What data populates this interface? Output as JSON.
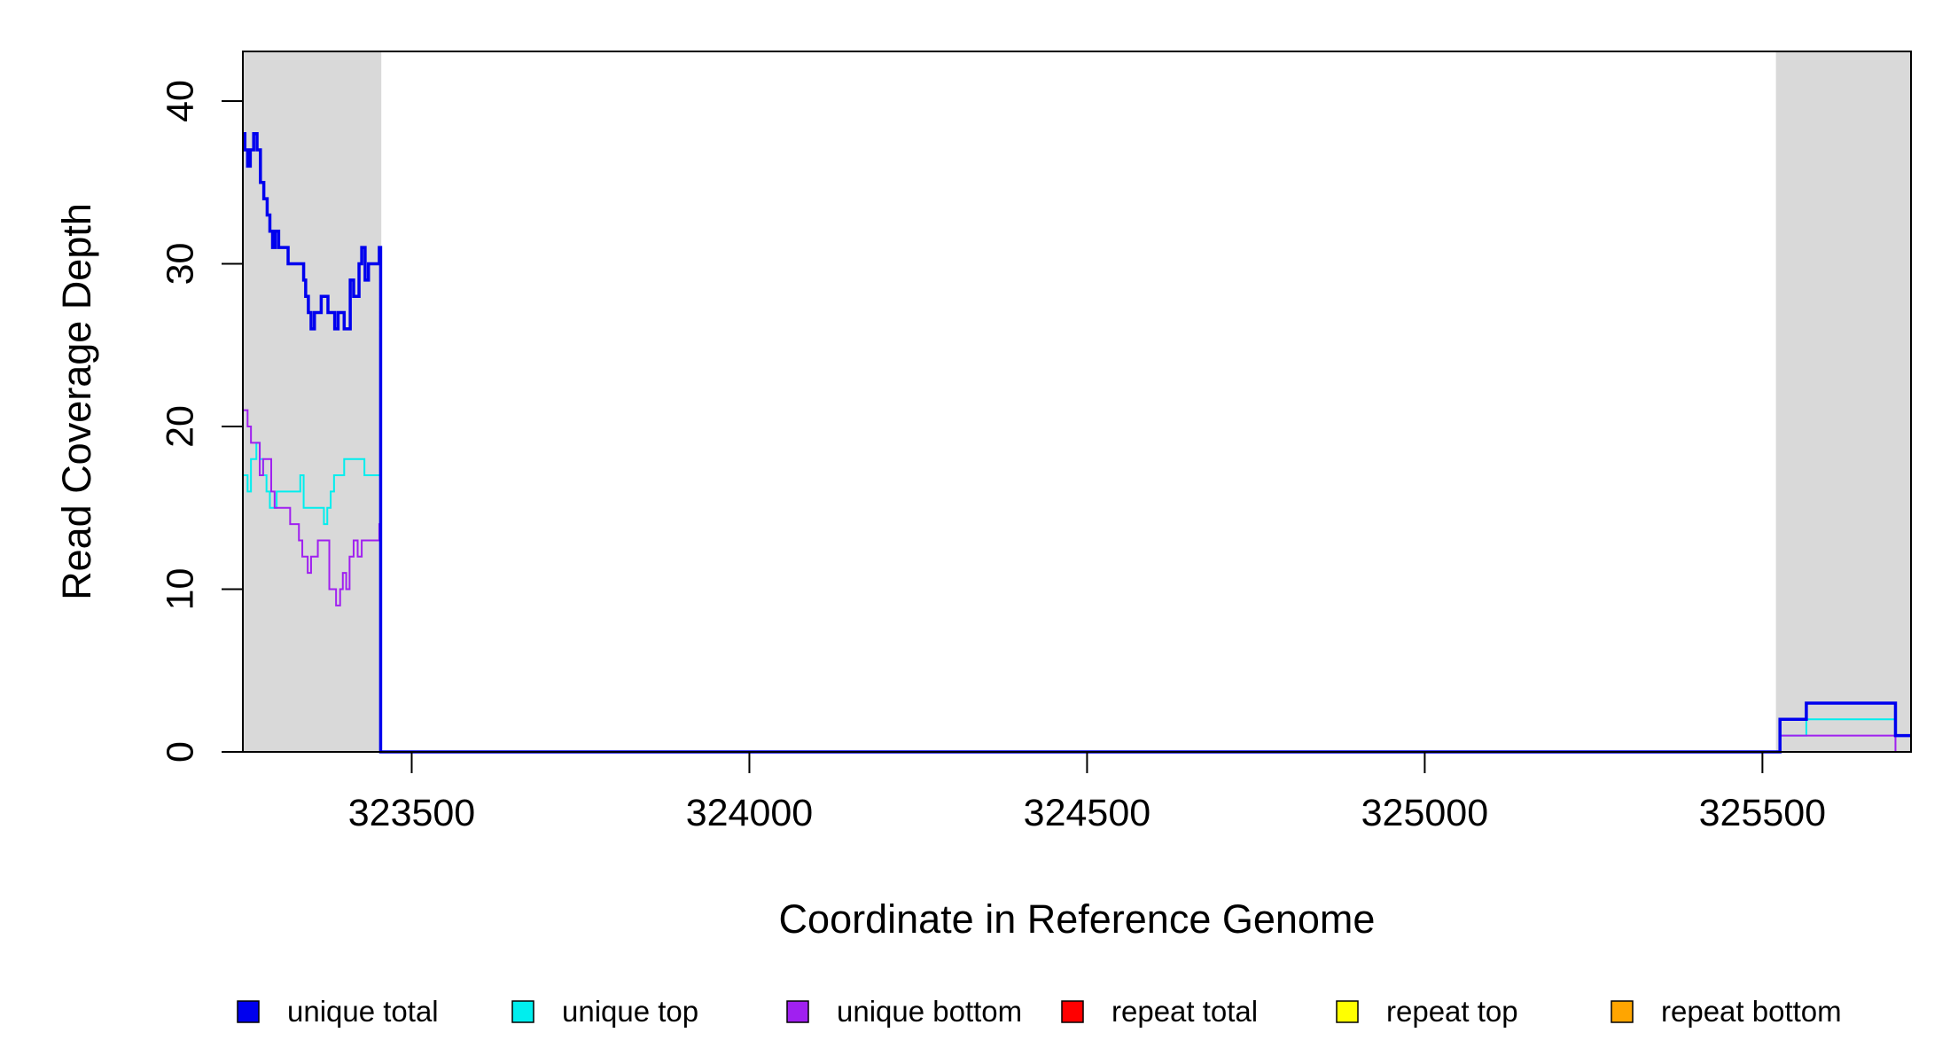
{
  "chart_data": {
    "type": "line",
    "title": "",
    "xlabel": "Coordinate in Reference Genome",
    "ylabel": "Read Coverage Depth",
    "xlim": [
      323250,
      325720
    ],
    "ylim": [
      0,
      43
    ],
    "x_ticks": [
      323500,
      324000,
      324500,
      325000,
      325500
    ],
    "y_ticks": [
      0,
      10,
      20,
      30,
      40
    ],
    "grid": false,
    "shaded_regions": [
      {
        "x0": 323250,
        "x1": 323455,
        "color": "#d9d9d9"
      },
      {
        "x0": 325520,
        "x1": 325720,
        "color": "#d9d9d9"
      }
    ],
    "series": [
      {
        "name": "unique total",
        "color": "#0000ee",
        "step": true,
        "x": [
          323250,
          323253,
          323257,
          323261,
          323266,
          323271,
          323276,
          323281,
          323286,
          323290,
          323294,
          323298,
          323303,
          323308,
          323317,
          323325,
          323340,
          323343,
          323347,
          323351,
          323356,
          323360,
          323366,
          323371,
          323376,
          323381,
          323386,
          323391,
          323396,
          323400,
          323405,
          323409,
          323414,
          323418,
          323422,
          323426,
          323431,
          323436,
          323444,
          323449,
          323452,
          323454,
          325519,
          325526,
          325560,
          325565,
          325693,
          325697,
          325720
        ],
        "y": [
          38,
          37,
          36,
          37,
          38,
          37,
          35,
          34,
          33,
          32,
          31,
          32,
          31,
          31,
          30,
          30,
          29,
          28,
          27,
          26,
          27,
          27,
          28,
          28,
          27,
          27,
          26,
          27,
          27,
          26,
          26,
          29,
          28,
          28,
          30,
          31,
          29,
          30,
          30,
          30,
          31,
          0,
          0,
          2,
          2,
          3,
          3,
          1,
          1
        ]
      },
      {
        "name": "unique top",
        "color": "#00eeee",
        "step": true,
        "x": [
          323250,
          323257,
          323262,
          323270,
          323275,
          323280,
          323285,
          323290,
          323300,
          323310,
          323330,
          323335,
          323340,
          323360,
          323370,
          323375,
          323380,
          323385,
          323390,
          323400,
          323412,
          323430,
          323450,
          323454,
          325519,
          325526,
          325560,
          325565,
          325693,
          325697,
          325720
        ],
        "y": [
          17,
          16,
          18,
          19,
          18,
          17,
          16,
          15,
          16,
          16,
          16,
          17,
          15,
          15,
          14,
          15,
          16,
          17,
          17,
          18,
          18,
          17,
          17,
          0,
          0,
          1,
          1,
          2,
          2,
          1,
          1
        ]
      },
      {
        "name": "unique bottom",
        "color": "#a020f0",
        "step": true,
        "x": [
          323250,
          323257,
          323262,
          323270,
          323275,
          323280,
          323285,
          323292,
          323297,
          323302,
          323312,
          323320,
          323333,
          323338,
          323346,
          323351,
          323355,
          323361,
          323366,
          323378,
          323381,
          323388,
          323394,
          323398,
          323403,
          323408,
          323414,
          323420,
          323426,
          323432,
          323448,
          323452,
          323454,
          325519,
          325526,
          325690,
          325697,
          325720
        ],
        "y": [
          21,
          20,
          19,
          19,
          17,
          18,
          18,
          16,
          15,
          15,
          15,
          14,
          13,
          12,
          11,
          12,
          12,
          13,
          13,
          10,
          10,
          9,
          10,
          11,
          10,
          12,
          13,
          12,
          13,
          13,
          13,
          14,
          0,
          0,
          1,
          1,
          0,
          0
        ]
      },
      {
        "name": "repeat total",
        "color": "#ff0000",
        "step": true,
        "x": [
          323250,
          325720
        ],
        "y": [
          0,
          0
        ]
      },
      {
        "name": "repeat top",
        "color": "#ffff00",
        "step": true,
        "x": [
          323250,
          325720
        ],
        "y": [
          0,
          0
        ]
      },
      {
        "name": "repeat bottom",
        "color": "#ffa500",
        "step": true,
        "x": [
          323250,
          325720
        ],
        "y": [
          0,
          0
        ]
      }
    ],
    "legend": {
      "placement": "bottom",
      "entries": [
        {
          "label": "unique total",
          "color": "#0000ee"
        },
        {
          "label": "unique top",
          "color": "#00eeee"
        },
        {
          "label": "unique bottom",
          "color": "#a020f0"
        },
        {
          "label": "repeat total",
          "color": "#ff0000"
        },
        {
          "label": "repeat top",
          "color": "#ffff00"
        },
        {
          "label": "repeat bottom",
          "color": "#ffa500"
        }
      ]
    }
  }
}
